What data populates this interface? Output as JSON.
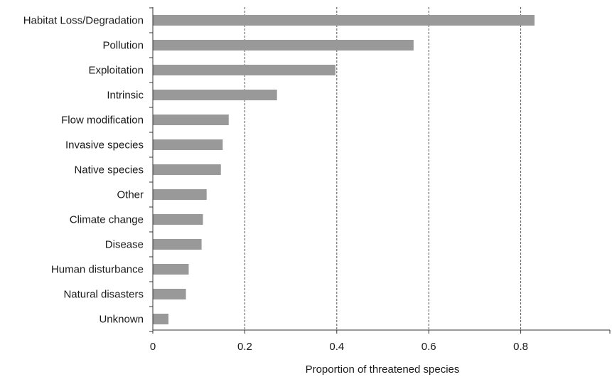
{
  "chart_data": {
    "type": "bar",
    "orientation": "horizontal",
    "categories": [
      "Habitat Loss/Degradation",
      "Pollution",
      "Exploitation",
      "Intrinsic",
      "Flow modification",
      "Invasive species",
      "Native species ",
      "Other",
      "Climate change",
      "Disease",
      "Human disturbance",
      "Natural disasters",
      "Unknown"
    ],
    "values": [
      0.83,
      0.567,
      0.397,
      0.27,
      0.165,
      0.152,
      0.148,
      0.117,
      0.109,
      0.106,
      0.078,
      0.072,
      0.034
    ],
    "xlabel": "Proportion of threatened species",
    "ylabel": "",
    "xlim": [
      0,
      1
    ],
    "xticks": [
      "0",
      "0.2",
      "0.4",
      "0.6",
      "0.8"
    ],
    "grid": "vertical dashed",
    "bar_color": "#999999"
  }
}
